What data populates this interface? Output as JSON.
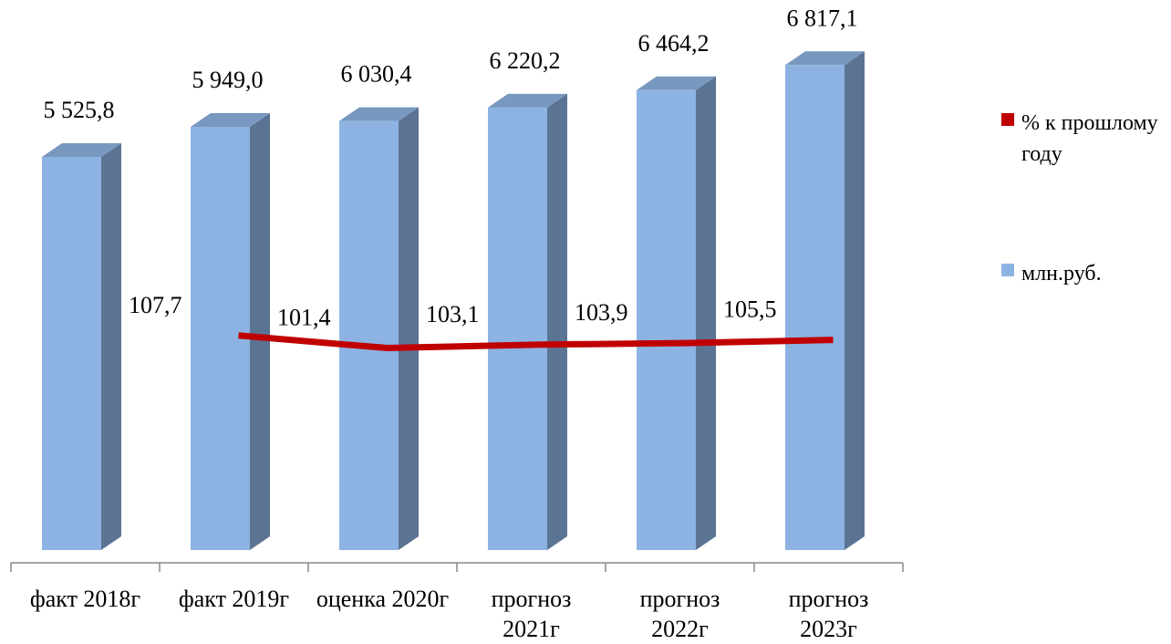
{
  "chart_data": {
    "type": "bar",
    "categories": [
      "факт 2018г",
      "факт 2019г",
      "оценка 2020г",
      "прогноз 2021г",
      "прогноз 2022г",
      "прогноз 2023г"
    ],
    "series": [
      {
        "name": "% к прошлому году",
        "type": "line",
        "axis": "y2",
        "color": "#c00000",
        "values": [
          null,
          107.7,
          101.4,
          103.1,
          103.9,
          105.5
        ],
        "value_labels": [
          null,
          "107,7",
          "101,4",
          "103,1",
          "103,9",
          "105,5"
        ]
      },
      {
        "name": "млн.руб.",
        "type": "bar",
        "color": "#8db3e2",
        "values": [
          5525.8,
          5949.0,
          6030.4,
          6220.2,
          6464.2,
          6817.1
        ],
        "value_labels": [
          "5 525,8",
          "5 949,0",
          "6 030,4",
          "6 220,2",
          "6 464,2",
          "6 817,1"
        ]
      }
    ],
    "ylim": [
      0,
      7000
    ],
    "y2lim": [
      0,
      250
    ],
    "grid": false,
    "legend": "right"
  }
}
